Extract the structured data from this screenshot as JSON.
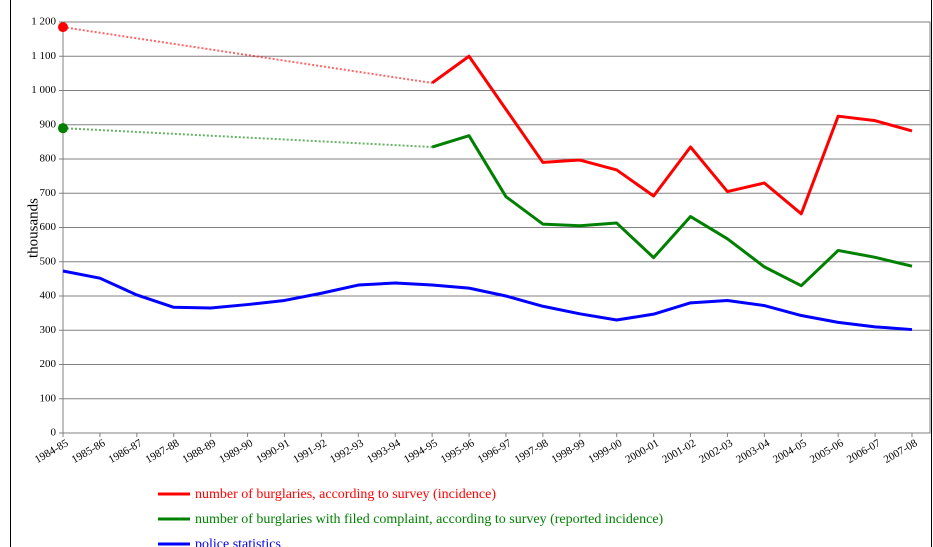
{
  "chart_data": {
    "type": "line",
    "y_axis_label": "thousands",
    "categories": [
      "1984-85",
      "1985-86",
      "1986-87",
      "1987-88",
      "1988-89",
      "1989-90",
      "1990-91",
      "1991-92",
      "1992-93",
      "1993-94",
      "1994-95",
      "1995-96",
      "1996-97",
      "1997-98",
      "1998-99",
      "1999-00",
      "2000-01",
      "2001-02",
      "2002-03",
      "2003-04",
      "2004-05",
      "2005-06",
      "2006-07",
      "2007-08"
    ],
    "series": [
      {
        "name": "number of burglaries, according to survey (incidence)",
        "color": "#ff0000",
        "values": [
          1185,
          null,
          null,
          null,
          null,
          null,
          null,
          null,
          null,
          null,
          1022,
          1100,
          945,
          790,
          797,
          768,
          692,
          835,
          705,
          730,
          640,
          925,
          912,
          882
        ]
      },
      {
        "name": "number of burglaries with filed complaint, according to survey (reported incidence)",
        "color": "#008000",
        "values": [
          890,
          null,
          null,
          null,
          null,
          null,
          null,
          null,
          null,
          null,
          835,
          868,
          690,
          610,
          605,
          613,
          512,
          632,
          567,
          485,
          430,
          533,
          513,
          487
        ]
      },
      {
        "name": "police statistics",
        "color": "#0000ff",
        "values": [
          473,
          452,
          403,
          367,
          365,
          375,
          387,
          408,
          432,
          438,
          432,
          423,
          400,
          370,
          348,
          330,
          347,
          380,
          387,
          372,
          343,
          323,
          310,
          302
        ]
      }
    ],
    "gap_style": "dotted",
    "ylim": [
      0,
      1200
    ],
    "yticks": [
      0,
      100,
      200,
      300,
      400,
      500,
      600,
      700,
      800,
      900,
      {
        "value": 1000,
        "label": "1 000"
      },
      {
        "value": 1100,
        "label": "1 100"
      },
      {
        "value": 1200,
        "label": "1 200"
      }
    ],
    "grid": true
  }
}
